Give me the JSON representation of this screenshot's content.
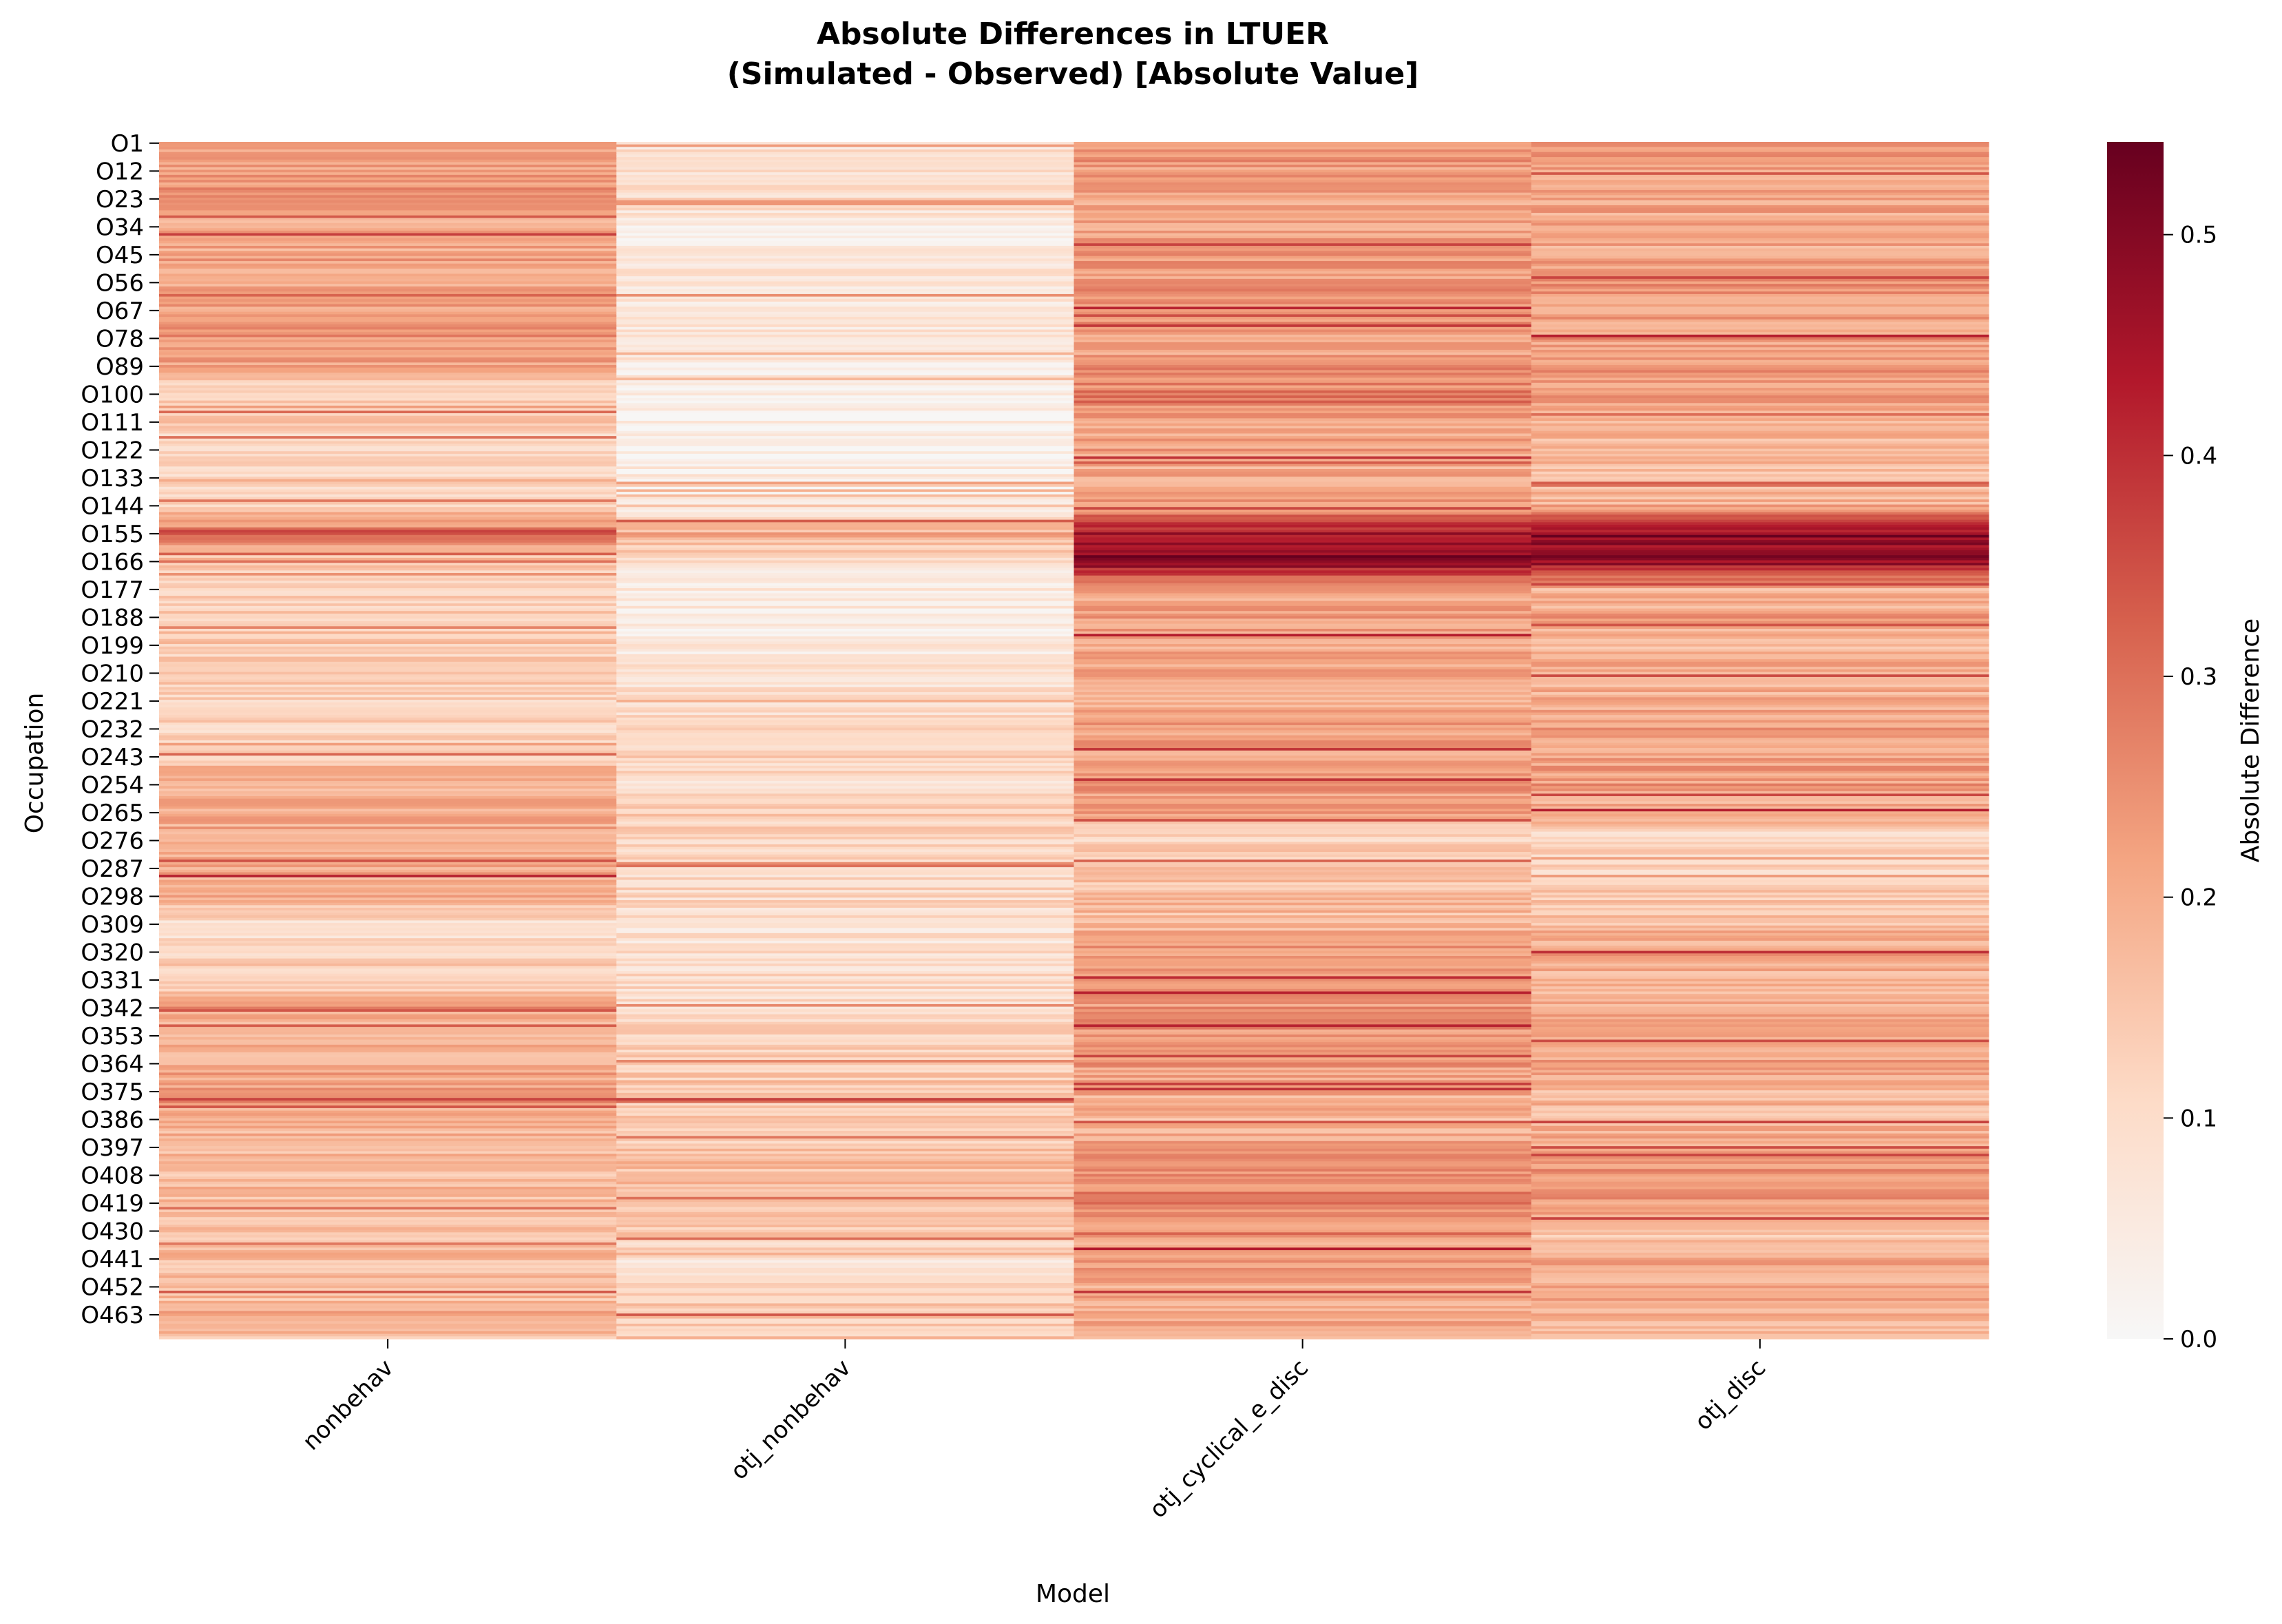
{
  "chart_data": {
    "type": "heatmap",
    "title_line1": "Absolute Differences in LTUER",
    "title_line2": "(Simulated - Observed) [Absolute Value]",
    "xlabel": "Model",
    "ylabel": "Occupation",
    "colorbar_label": "Absolute Difference",
    "colormap": "Reds (light gray to dark red)",
    "colorscale_stops": [
      "#f7f7f7",
      "#fddbc7",
      "#f4a582",
      "#d6604d",
      "#b2182b",
      "#67001f"
    ],
    "vmin": 0.0,
    "vmax": 0.542,
    "colorbar_ticks": [
      "0.0",
      "0.1",
      "0.2",
      "0.3",
      "0.4",
      "0.5"
    ],
    "colorbar_tick_values": [
      0.0,
      0.1,
      0.2,
      0.3,
      0.4,
      0.5
    ],
    "columns": [
      "nonbehav",
      "otj_nonbehav",
      "otj_cyclical_e_disc",
      "otj_disc"
    ],
    "row_count": 472,
    "row_tick_labels": [
      "O1",
      "O12",
      "O23",
      "O34",
      "O45",
      "O56",
      "O67",
      "O78",
      "O89",
      "O100",
      "O111",
      "O122",
      "O133",
      "O144",
      "O155",
      "O166",
      "O177",
      "O188",
      "O199",
      "O210",
      "O221",
      "O232",
      "O243",
      "O254",
      "O265",
      "O276",
      "O287",
      "O298",
      "O309",
      "O320",
      "O331",
      "O342",
      "O353",
      "O364",
      "O375",
      "O386",
      "O397",
      "O408",
      "O419",
      "O430",
      "O441",
      "O452",
      "O463"
    ],
    "segment_profiles": {
      "nonbehav": [
        0.22,
        0.22,
        0.24,
        0.21,
        0.21,
        0.22,
        0.22,
        0.25,
        0.2,
        0.12,
        0.13,
        0.11,
        0.12,
        0.12,
        0.3,
        0.13,
        0.13,
        0.15,
        0.14,
        0.13,
        0.13,
        0.12,
        0.15,
        0.2,
        0.2,
        0.2,
        0.2,
        0.19,
        0.09,
        0.12,
        0.14,
        0.2,
        0.18,
        0.21,
        0.23,
        0.2,
        0.18,
        0.17,
        0.18,
        0.17,
        0.17,
        0.16,
        0.17
      ],
      "otj_nonbehav": [
        0.09,
        0.08,
        0.1,
        0.05,
        0.07,
        0.06,
        0.07,
        0.07,
        0.06,
        0.03,
        0.03,
        0.02,
        0.03,
        0.04,
        0.2,
        0.08,
        0.05,
        0.06,
        0.06,
        0.08,
        0.1,
        0.09,
        0.11,
        0.1,
        0.14,
        0.12,
        0.11,
        0.11,
        0.07,
        0.09,
        0.1,
        0.11,
        0.11,
        0.13,
        0.16,
        0.14,
        0.15,
        0.17,
        0.15,
        0.15,
        0.08,
        0.12,
        0.14
      ],
      "otj_cyclical_e_disc": [
        0.26,
        0.23,
        0.22,
        0.21,
        0.24,
        0.23,
        0.25,
        0.22,
        0.22,
        0.28,
        0.21,
        0.22,
        0.2,
        0.23,
        0.46,
        0.5,
        0.2,
        0.24,
        0.2,
        0.22,
        0.2,
        0.23,
        0.2,
        0.23,
        0.21,
        0.12,
        0.15,
        0.17,
        0.17,
        0.24,
        0.21,
        0.24,
        0.24,
        0.23,
        0.2,
        0.18,
        0.21,
        0.25,
        0.27,
        0.19,
        0.26,
        0.21,
        0.2
      ],
      "otj_disc": [
        0.26,
        0.22,
        0.22,
        0.2,
        0.21,
        0.24,
        0.23,
        0.21,
        0.23,
        0.23,
        0.17,
        0.18,
        0.16,
        0.2,
        0.46,
        0.48,
        0.17,
        0.22,
        0.18,
        0.2,
        0.19,
        0.22,
        0.21,
        0.23,
        0.19,
        0.1,
        0.12,
        0.14,
        0.17,
        0.21,
        0.18,
        0.21,
        0.21,
        0.22,
        0.18,
        0.18,
        0.2,
        0.25,
        0.24,
        0.14,
        0.23,
        0.2,
        0.19
      ]
    }
  }
}
